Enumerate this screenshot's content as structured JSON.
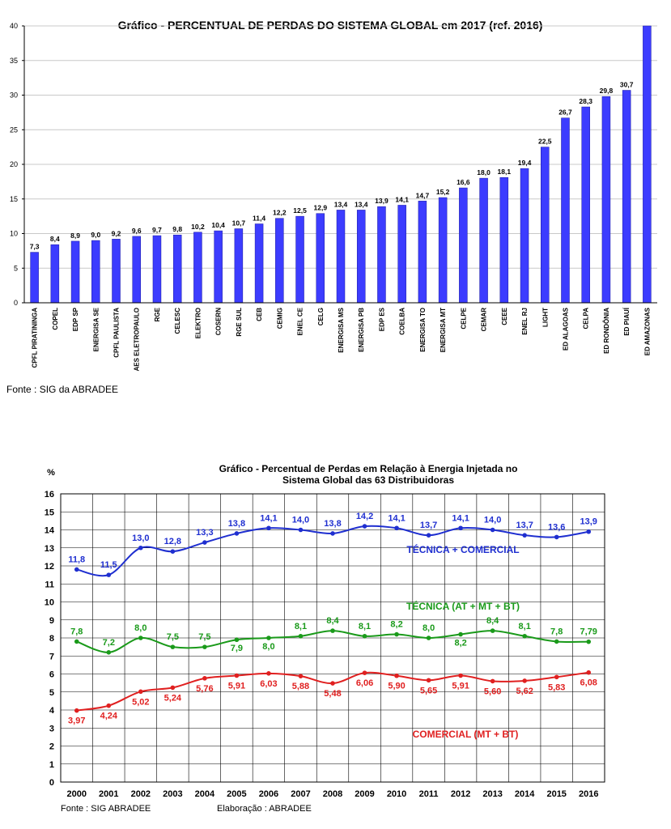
{
  "chart_data": [
    {
      "type": "bar",
      "title": "Gráfico - PERCENTUAL DE PERDAS DO SISTEMA GLOBAL em 2017 (ref. 2016)",
      "ylim": [
        0,
        40
      ],
      "yticks": [
        "0",
        "5",
        "10",
        "15",
        "20",
        "25",
        "30",
        "35",
        "40"
      ],
      "grid": true,
      "categories": [
        "CPFL PIRATININGA",
        "COPEL",
        "EDP SP",
        "ENERGISA SE",
        "CPFL PAULISTA",
        "AES ELETROPAULO",
        "RGE",
        "CELESC",
        "ELEKTRO",
        "COSERN",
        "RGE SUL",
        "CEB",
        "CEMIG",
        "ENEL CE",
        "CELG",
        "ENERGISA MS",
        "ENERGISA PB",
        "EDP ES",
        "COELBA",
        "ENERGISA TO",
        "ENERGISA MT",
        "CELPE",
        "CEMAR",
        "CEEE",
        "ENEL RJ",
        "LIGHT",
        "ED ALAGOAS",
        "CELPA",
        "ED RONDÔNIA",
        "ED PIAUÍ",
        "ED AMAZONAS"
      ],
      "values": [
        7.3,
        8.4,
        8.9,
        9.0,
        9.2,
        9.6,
        9.7,
        9.8,
        10.2,
        10.4,
        10.7,
        11.4,
        12.2,
        12.5,
        12.9,
        13.4,
        13.4,
        13.9,
        14.1,
        14.7,
        15.2,
        16.6,
        18.0,
        18.1,
        19.4,
        22.5,
        26.7,
        28.3,
        29.8,
        30.7,
        40
      ],
      "labels": [
        "7,3",
        "8,4",
        "8,9",
        "9,0",
        "9,2",
        "9,6",
        "9,7",
        "9,8",
        "10,2",
        "10,4",
        "10,7",
        "11,4",
        "12,2",
        "12,5",
        "12,9",
        "13,4",
        "13,4",
        "13,9",
        "14,1",
        "14,7",
        "15,2",
        "16,6",
        "18,0",
        "18,1",
        "19,4",
        "22,5",
        "26,7",
        "28,3",
        "29,8",
        "30,7",
        ""
      ],
      "bar_color": "#3c3cff",
      "source": "Fonte : SIG da ABRADEE"
    },
    {
      "type": "line",
      "title_lines": [
        "Gráfico - Percentual de Perdas em Relação à Energia Injetada no",
        "Sistema Global das 63 Distribuidoras"
      ],
      "ylabel": "%",
      "ylim": [
        0,
        16
      ],
      "yticks": [
        "0",
        "1",
        "2",
        "3",
        "4",
        "5",
        "6",
        "7",
        "8",
        "9",
        "10",
        "11",
        "12",
        "13",
        "14",
        "15",
        "16"
      ],
      "grid": true,
      "x": [
        "2000",
        "2001",
        "2002",
        "2003",
        "2004",
        "2005",
        "2006",
        "2007",
        "2008",
        "2009",
        "2010",
        "2011",
        "2012",
        "2013",
        "2014",
        "2015",
        "2016"
      ],
      "series": [
        {
          "name": "TÉCNICA + COMERCIAL",
          "color": "#1f2fd0",
          "values": [
            11.8,
            11.5,
            13.0,
            12.8,
            13.3,
            13.8,
            14.1,
            14.0,
            13.8,
            14.2,
            14.1,
            13.7,
            14.1,
            14.0,
            13.7,
            13.6,
            13.9
          ],
          "labels": [
            "11,8",
            "11,5",
            "13,0",
            "12,8",
            "13,3",
            "13,8",
            "14,1",
            "14,0",
            "13,8",
            "14,2",
            "14,1",
            "13,7",
            "14,1",
            "14,0",
            "13,7",
            "13,6",
            "13,9"
          ]
        },
        {
          "name": "TÉCNICA (AT + MT + BT)",
          "color": "#1a9a1a",
          "values": [
            7.8,
            7.2,
            8.0,
            7.5,
            7.5,
            7.9,
            8.0,
            8.1,
            8.4,
            8.1,
            8.2,
            8.0,
            8.2,
            8.4,
            8.1,
            7.8,
            7.79
          ],
          "labels": [
            "7,8",
            "7,2",
            "8,0",
            "7,5",
            "7,5",
            "7,9",
            "8,0",
            "8,1",
            "8,4",
            "8,1",
            "8,2",
            "8,0",
            "8,2",
            "8,4",
            "8,1",
            "7,8",
            "7,79"
          ]
        },
        {
          "name": "COMERCIAL (MT + BT)",
          "color": "#e02020",
          "values": [
            3.97,
            4.24,
            5.02,
            5.24,
            5.76,
            5.91,
            6.03,
            5.88,
            5.48,
            6.06,
            5.9,
            5.65,
            5.91,
            5.6,
            5.62,
            5.83,
            6.08
          ],
          "labels": [
            "3,97",
            "4,24",
            "5,02",
            "5,24",
            "5,76",
            "5,91",
            "6,03",
            "5,88",
            "5,48",
            "6,06",
            "5,90",
            "5,65",
            "5,91",
            "5,60",
            "5,62",
            "5,83",
            "6,08"
          ]
        }
      ],
      "footer_left": "Fonte : SIG ABRADEE",
      "footer_right": "Elaboração : ABRADEE"
    }
  ]
}
